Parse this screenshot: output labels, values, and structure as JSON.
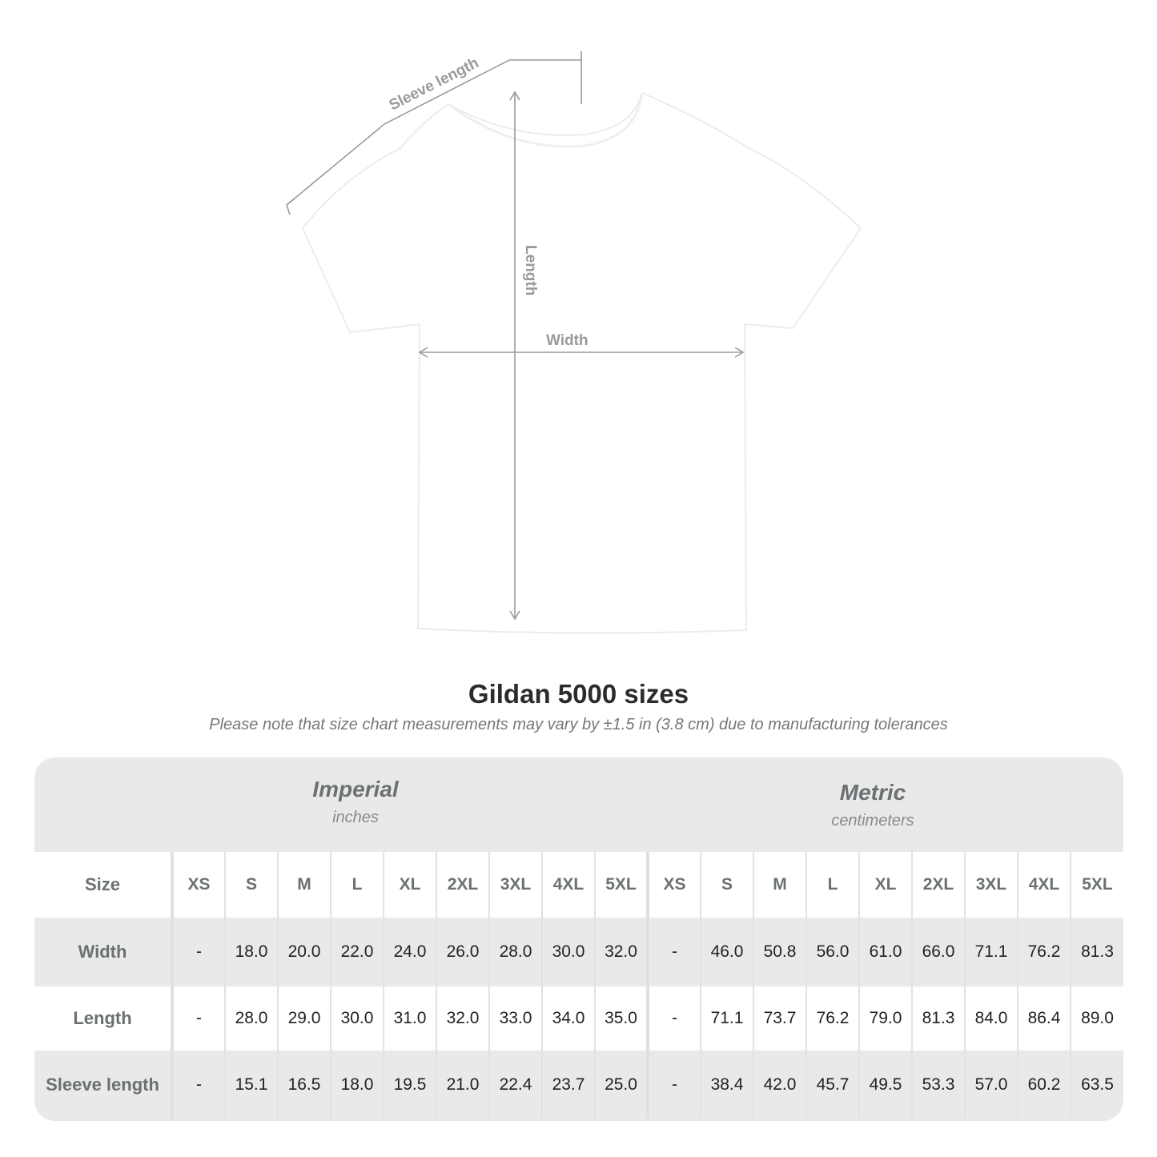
{
  "diagram": {
    "labels": {
      "sleeve_length": "Sleeve length",
      "length": "Length",
      "width": "Width"
    },
    "colors": {
      "arrow": "#9a9a9a",
      "shirt": "#ffffff",
      "shirt_outline": "#ececec"
    }
  },
  "title": "Gildan 5000 sizes",
  "subtitle": "Please note that size chart measurements may vary by ±1.5 in (3.8 cm) due to manufacturing tolerances",
  "table": {
    "imperial": {
      "name": "Imperial",
      "unit": "inches"
    },
    "metric": {
      "name": "Metric",
      "unit": "centimeters"
    },
    "size_label": "Size",
    "sizes": [
      "XS",
      "S",
      "M",
      "L",
      "XL",
      "2XL",
      "3XL",
      "4XL",
      "5XL"
    ],
    "rows": [
      {
        "label": "Width",
        "imperial": [
          "-",
          "18.0",
          "20.0",
          "22.0",
          "24.0",
          "26.0",
          "28.0",
          "30.0",
          "32.0"
        ],
        "metric": [
          "-",
          "46.0",
          "50.8",
          "56.0",
          "61.0",
          "66.0",
          "71.1",
          "76.2",
          "81.3"
        ]
      },
      {
        "label": "Length",
        "imperial": [
          "-",
          "28.0",
          "29.0",
          "30.0",
          "31.0",
          "32.0",
          "33.0",
          "34.0",
          "35.0"
        ],
        "metric": [
          "-",
          "71.1",
          "73.7",
          "76.2",
          "79.0",
          "81.3",
          "84.0",
          "86.4",
          "89.0"
        ]
      },
      {
        "label": "Sleeve length",
        "imperial": [
          "-",
          "15.1",
          "16.5",
          "18.0",
          "19.5",
          "21.0",
          "22.4",
          "23.7",
          "25.0"
        ],
        "metric": [
          "-",
          "38.4",
          "42.0",
          "45.7",
          "49.5",
          "53.3",
          "57.0",
          "60.2",
          "63.5"
        ]
      }
    ]
  }
}
